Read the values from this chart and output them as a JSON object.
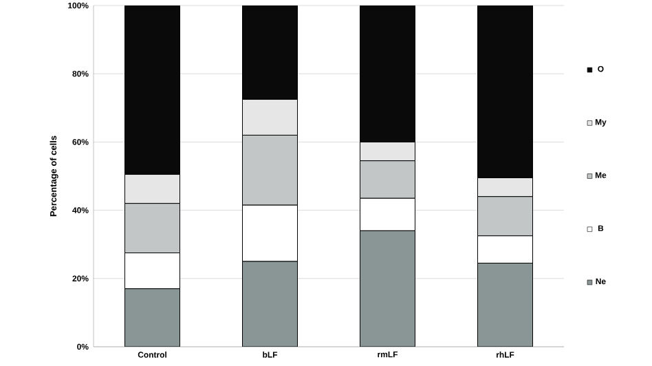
{
  "chart_data": {
    "type": "bar",
    "stacked": true,
    "ylabel": "Percentage of cells",
    "categories": [
      "Control",
      "bLF",
      "rmLF",
      "rhLF"
    ],
    "series": [
      {
        "name": "Ne",
        "color": "#8a9696",
        "values": [
          17,
          25,
          34,
          24.5
        ]
      },
      {
        "name": "B",
        "color": "#ffffff",
        "values": [
          10.5,
          16.5,
          9.5,
          8
        ]
      },
      {
        "name": "Me",
        "color": "#c2c6c6",
        "values": [
          14.5,
          20.5,
          11,
          11.5
        ]
      },
      {
        "name": "My",
        "color": "#e6e6e6",
        "values": [
          8.5,
          10.5,
          5.5,
          5.5
        ]
      },
      {
        "name": "O",
        "color": "#0a0a0a",
        "values": [
          49.5,
          27.5,
          40,
          50.5
        ]
      }
    ],
    "ylim": [
      0,
      100
    ],
    "yticks": [
      {
        "value": 0,
        "label": "0%"
      },
      {
        "value": 20,
        "label": "20%"
      },
      {
        "value": 40,
        "label": "40%"
      },
      {
        "value": 60,
        "label": "60%"
      },
      {
        "value": 80,
        "label": "80%"
      },
      {
        "value": 100,
        "label": "100%"
      }
    ],
    "grid": "y",
    "legend": "right"
  }
}
